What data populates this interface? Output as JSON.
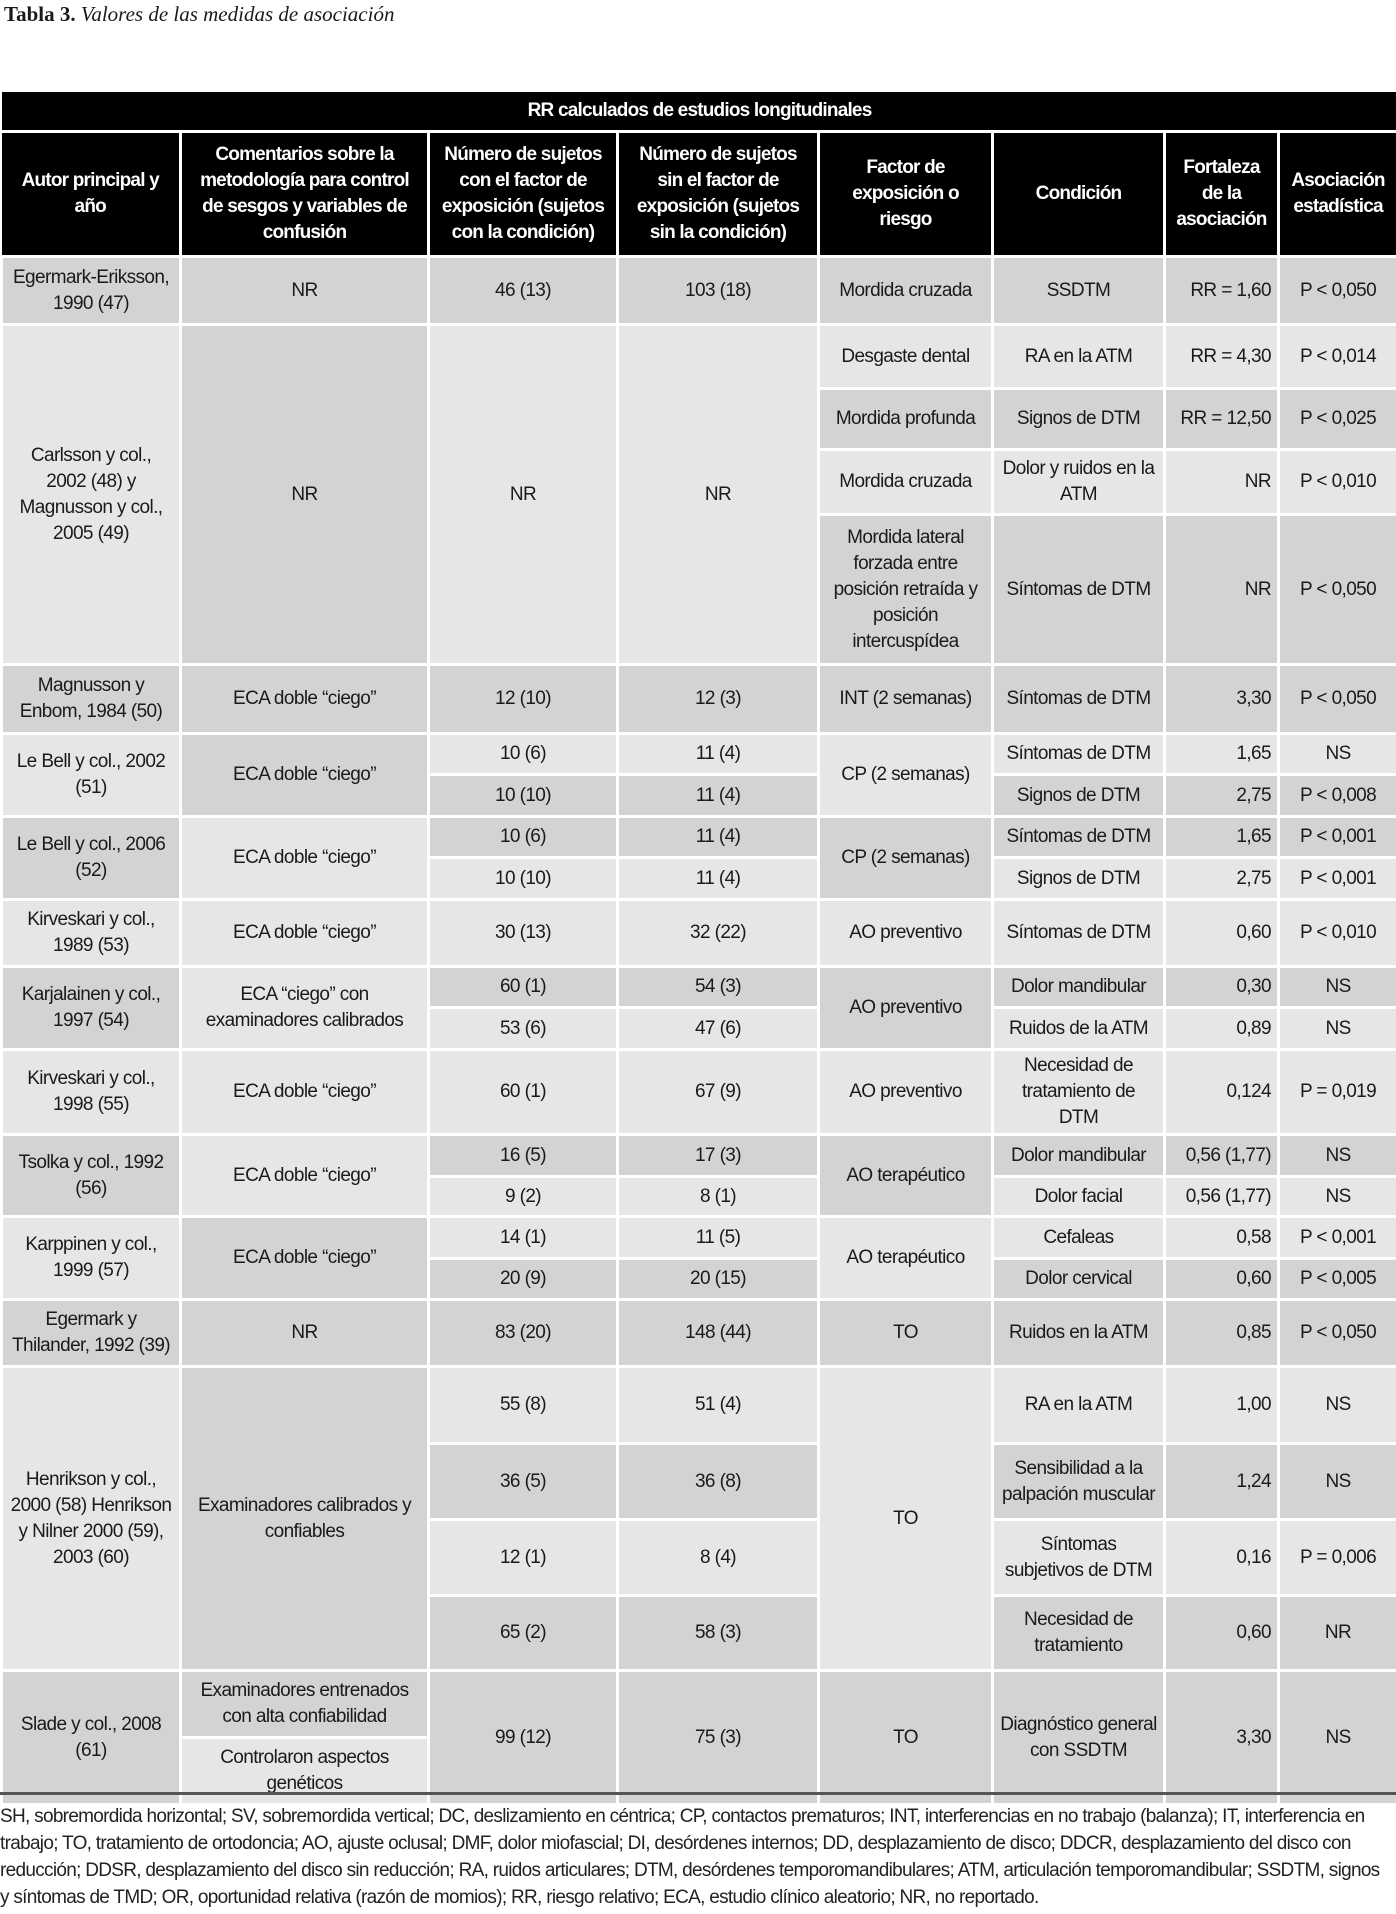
{
  "title": {
    "label": "Tabla 3.",
    "text": "Valores de las medidas de asociación"
  },
  "caption": "RR calculados de estudios longitudinales",
  "headers": [
    "Autor principal y año",
    "Comentarios sobre la metodología para control de sesgos y variables de confusión",
    "Número de sujetos con el factor de exposición (sujetos con la condición)",
    "Número de sujetos sin el factor de exposición (sujetos sin la condición)",
    "Factor de exposición o riesgo",
    "Condición",
    "Fortaleza de la asociación",
    "Asociación estadística"
  ],
  "groups": [
    {
      "author": "Egermark-Eriksson, 1990 (47)",
      "comments": "NR",
      "rows": [
        {
          "n_exp": "46 (13)",
          "n_noexp": "103 (18)",
          "factor": "Mordida cruzada",
          "cond": "SSDTM",
          "rr": "RR = 1,60",
          "p": "P < 0,050"
        }
      ]
    },
    {
      "author": "Carlsson y col., 2002 (48) y Magnusson y col., 2005 (49)",
      "comments": "NR",
      "n_exp": "NR",
      "n_noexp": "NR",
      "rows": [
        {
          "factor": "Desgaste dental",
          "cond": "RA en la ATM",
          "rr": "RR = 4,30",
          "p": "P < 0,014"
        },
        {
          "factor": "Mordida profunda",
          "cond": "Signos de DTM",
          "rr": "RR = 12,50",
          "p": "P < 0,025"
        },
        {
          "factor": "Mordida cruzada",
          "cond": "Dolor y ruidos en la ATM",
          "rr": "NR",
          "p": "P < 0,010"
        },
        {
          "factor": "Mordida lateral forzada entre posición retraída y posición intercuspídea",
          "cond": "Síntomas de DTM",
          "rr": "NR",
          "p": "P < 0,050"
        }
      ]
    },
    {
      "author": "Magnusson y Enbom, 1984 (50)",
      "comments": "ECA doble “ciego”",
      "rows": [
        {
          "n_exp": "12 (10)",
          "n_noexp": "12 (3)",
          "factor": "INT (2 semanas)",
          "cond": "Síntomas de DTM",
          "rr": "3,30",
          "p": "P < 0,050"
        }
      ]
    },
    {
      "author": "Le Bell y col., 2002 (51)",
      "comments": "ECA doble “ciego”",
      "factor": "CP (2 semanas)",
      "rows": [
        {
          "n_exp": "10 (6)",
          "n_noexp": "11 (4)",
          "cond": "Síntomas de DTM",
          "rr": "1,65",
          "p": "NS"
        },
        {
          "n_exp": "10 (10)",
          "n_noexp": "11 (4)",
          "cond": "Signos de DTM",
          "rr": "2,75",
          "p": "P < 0,008"
        }
      ]
    },
    {
      "author": "Le Bell y col., 2006 (52)",
      "comments": "ECA doble “ciego”",
      "factor": "CP (2 semanas)",
      "rows": [
        {
          "n_exp": "10 (6)",
          "n_noexp": "11 (4)",
          "cond": "Síntomas de DTM",
          "rr": "1,65",
          "p": "P < 0,001"
        },
        {
          "n_exp": "10 (10)",
          "n_noexp": "11 (4)",
          "cond": "Signos de DTM",
          "rr": "2,75",
          "p": "P < 0,001"
        }
      ]
    },
    {
      "author": "Kirveskari y col., 1989 (53)",
      "comments": "ECA doble “ciego”",
      "rows": [
        {
          "n_exp": "30 (13)",
          "n_noexp": "32 (22)",
          "factor": "AO preventivo",
          "cond": "Síntomas de DTM",
          "rr": "0,60",
          "p": "P < 0,010"
        }
      ]
    },
    {
      "author": "Karjalainen y col., 1997 (54)",
      "comments": "ECA “ciego” con examinadores calibrados",
      "factor": "AO preventivo",
      "rows": [
        {
          "n_exp": "60 (1)",
          "n_noexp": "54 (3)",
          "cond": "Dolor mandibular",
          "rr": "0,30",
          "p": "NS"
        },
        {
          "n_exp": "53 (6)",
          "n_noexp": "47 (6)",
          "cond": "Ruidos de la ATM",
          "rr": "0,89",
          "p": "NS"
        }
      ]
    },
    {
      "author": "Kirveskari y col., 1998 (55)",
      "comments": "ECA doble “ciego”",
      "rows": [
        {
          "n_exp": "60 (1)",
          "n_noexp": "67 (9)",
          "factor": "AO preventivo",
          "cond": "Necesidad de tratamiento de DTM",
          "rr": "0,124",
          "p": "P = 0,019"
        }
      ]
    },
    {
      "author": "Tsolka y col., 1992 (56)",
      "comments": "ECA doble “ciego”",
      "factor": "AO terapéutico",
      "rows": [
        {
          "n_exp": "16 (5)",
          "n_noexp": "17 (3)",
          "cond": "Dolor mandibular",
          "rr": "0,56 (1,77)",
          "p": "NS"
        },
        {
          "n_exp": "9 (2)",
          "n_noexp": "8 (1)",
          "cond": "Dolor facial",
          "rr": "0,56 (1,77)",
          "p": "NS"
        }
      ]
    },
    {
      "author": "Karppinen y col., 1999 (57)",
      "comments": "ECA doble “ciego”",
      "factor": "AO terapéutico",
      "rows": [
        {
          "n_exp": "14 (1)",
          "n_noexp": "11 (5)",
          "cond": "Cefaleas",
          "rr": "0,58",
          "p": "P < 0,001"
        },
        {
          "n_exp": "20 (9)",
          "n_noexp": "20 (15)",
          "cond": "Dolor cervical",
          "rr": "0,60",
          "p": "P < 0,005"
        }
      ]
    },
    {
      "author": "Egermark y Thilander, 1992 (39)",
      "comments": "NR",
      "rows": [
        {
          "n_exp": "83 (20)",
          "n_noexp": "148 (44)",
          "factor": "TO",
          "cond": "Ruidos en la ATM",
          "rr": "0,85",
          "p": "P < 0,050"
        }
      ]
    },
    {
      "author": "Henrikson y col., 2000 (58) Henrikson y Nilner 2000 (59), 2003 (60)",
      "comments": "Examinadores calibrados y confiables",
      "factor": "TO",
      "rows": [
        {
          "n_exp": "55 (8)",
          "n_noexp": "51 (4)",
          "cond": "RA en la ATM",
          "rr": "1,00",
          "p": "NS"
        },
        {
          "n_exp": "36 (5)",
          "n_noexp": "36 (8)",
          "cond": "Sensibilidad a la palpación muscular",
          "rr": "1,24",
          "p": "NS"
        },
        {
          "n_exp": "12 (1)",
          "n_noexp": "8 (4)",
          "cond": "Síntomas subjetivos de DTM",
          "rr": "0,16",
          "p": "P = 0,006"
        },
        {
          "n_exp": "65 (2)",
          "n_noexp": "58 (3)",
          "cond": "Necesidad de tratamiento",
          "rr": "0,60",
          "p": "NR"
        }
      ]
    },
    {
      "author": "Slade y col., 2008 (61)",
      "n_exp": "99 (12)",
      "n_noexp": "75 (3)",
      "factor": "TO",
      "cond": "Diagnóstico general con SSDTM",
      "rr": "3,30",
      "p": "NS",
      "rows": [
        {
          "comments": "Examinadores entrenados con alta confiabilidad"
        },
        {
          "comments": "Controlaron aspectos genéticos"
        }
      ]
    }
  ],
  "footer": [
    "SH, sobremordida horizontal; SV, sobremordida vertical; DC, deslizamiento en céntrica; CP, contactos prematuros; INT, interferencias en no trabajo (balanza); IT, interferencia en",
    "trabajo; TO, tratamiento de ortodoncia; AO, ajuste oclusal; DMF, dolor miofascial; DI, desórdenes internos; DD, desplazamiento de disco; DDCR, desplazamiento del disco con",
    "reducción; DDSR, desplazamiento del disco sin reducción; RA, ruidos articulares; DTM, desórdenes temporomandibulares; ATM, articulación temporomandibular; SSDTM, signos",
    "y síntomas de TMD; OR, oportunidad relativa (razón de momios); RR, riesgo relativo; ECA, estudio clínico aleatorio; NR, no reportado."
  ]
}
